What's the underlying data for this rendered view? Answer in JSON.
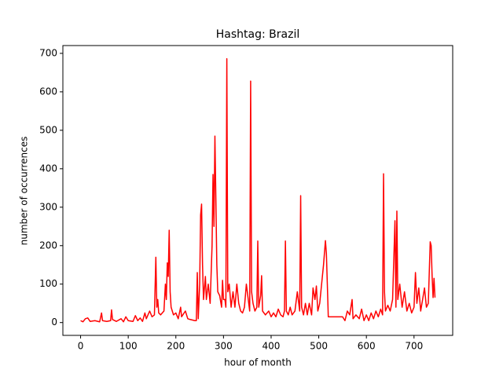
{
  "chart_data": {
    "type": "line",
    "title": "Hashtag: Brazil",
    "x_label": "hour of month",
    "y_label": "number of occurrences",
    "x": [
      0,
      5,
      10,
      15,
      20,
      30,
      40,
      44,
      46,
      55,
      63,
      65,
      67,
      75,
      85,
      90,
      95,
      100,
      110,
      115,
      120,
      125,
      130,
      135,
      138,
      145,
      150,
      155,
      158,
      160,
      162,
      164,
      168,
      175,
      178,
      180,
      182,
      184,
      186,
      188,
      190,
      195,
      200,
      205,
      210,
      212,
      220,
      225,
      230,
      240,
      243,
      245,
      247,
      250,
      252,
      254,
      256,
      258,
      260,
      262,
      264,
      268,
      272,
      276,
      278,
      280,
      282,
      284,
      286,
      288,
      292,
      296,
      298,
      300,
      303,
      305,
      307,
      309,
      312,
      316,
      320,
      324,
      328,
      332,
      336,
      340,
      344,
      348,
      352,
      355,
      357,
      359,
      362,
      366,
      370,
      372,
      374,
      378,
      380,
      382,
      388,
      395,
      400,
      405,
      410,
      415,
      420,
      425,
      428,
      430,
      432,
      436,
      440,
      444,
      450,
      455,
      460,
      462,
      464,
      468,
      472,
      476,
      480,
      485,
      488,
      492,
      495,
      498,
      502,
      506,
      510,
      514,
      516,
      518,
      520,
      550,
      555,
      560,
      565,
      570,
      572,
      578,
      585,
      590,
      595,
      600,
      605,
      610,
      615,
      620,
      625,
      630,
      634,
      636,
      638,
      640,
      645,
      650,
      655,
      660,
      662,
      664,
      666,
      670,
      675,
      680,
      685,
      690,
      695,
      700,
      703,
      706,
      710,
      714,
      718,
      722,
      726,
      730,
      734,
      736,
      738,
      740,
      742,
      744
    ],
    "series": [
      {
        "name": "Brazil",
        "color": "#ff0000",
        "values": [
          5,
          2,
          10,
          12,
          3,
          5,
          2,
          25,
          5,
          3,
          5,
          33,
          8,
          3,
          10,
          2,
          15,
          5,
          3,
          18,
          5,
          12,
          3,
          25,
          10,
          30,
          15,
          20,
          170,
          40,
          60,
          25,
          20,
          30,
          100,
          60,
          155,
          120,
          240,
          80,
          40,
          20,
          25,
          10,
          40,
          15,
          30,
          10,
          8,
          5,
          5,
          130,
          10,
          100,
          280,
          308,
          150,
          60,
          90,
          120,
          60,
          100,
          50,
          200,
          385,
          250,
          485,
          320,
          150,
          80,
          70,
          40,
          110,
          60,
          60,
          40,
          686,
          80,
          100,
          40,
          80,
          40,
          100,
          50,
          30,
          25,
          40,
          100,
          60,
          30,
          628,
          80,
          50,
          30,
          40,
          212,
          40,
          70,
          122,
          30,
          20,
          30,
          15,
          25,
          15,
          35,
          20,
          15,
          30,
          212,
          30,
          20,
          40,
          20,
          30,
          80,
          30,
          330,
          40,
          20,
          50,
          20,
          50,
          20,
          90,
          60,
          95,
          30,
          50,
          100,
          150,
          213,
          180,
          100,
          15,
          15,
          5,
          30,
          20,
          60,
          10,
          20,
          10,
          35,
          5,
          20,
          5,
          25,
          10,
          30,
          15,
          35,
          20,
          387,
          80,
          30,
          45,
          30,
          60,
          265,
          40,
          290,
          60,
          100,
          40,
          80,
          30,
          50,
          25,
          40,
          130,
          50,
          90,
          30,
          60,
          90,
          40,
          50,
          210,
          200,
          120,
          65,
          115,
          65
        ]
      }
    ],
    "xlim": [
      -37.2,
      781.2
    ],
    "ylim": [
      -33.3,
      720.3
    ],
    "xticks": [
      0,
      100,
      200,
      300,
      400,
      500,
      600,
      700
    ],
    "yticks": [
      0,
      100,
      200,
      300,
      400,
      500,
      600,
      700
    ]
  }
}
